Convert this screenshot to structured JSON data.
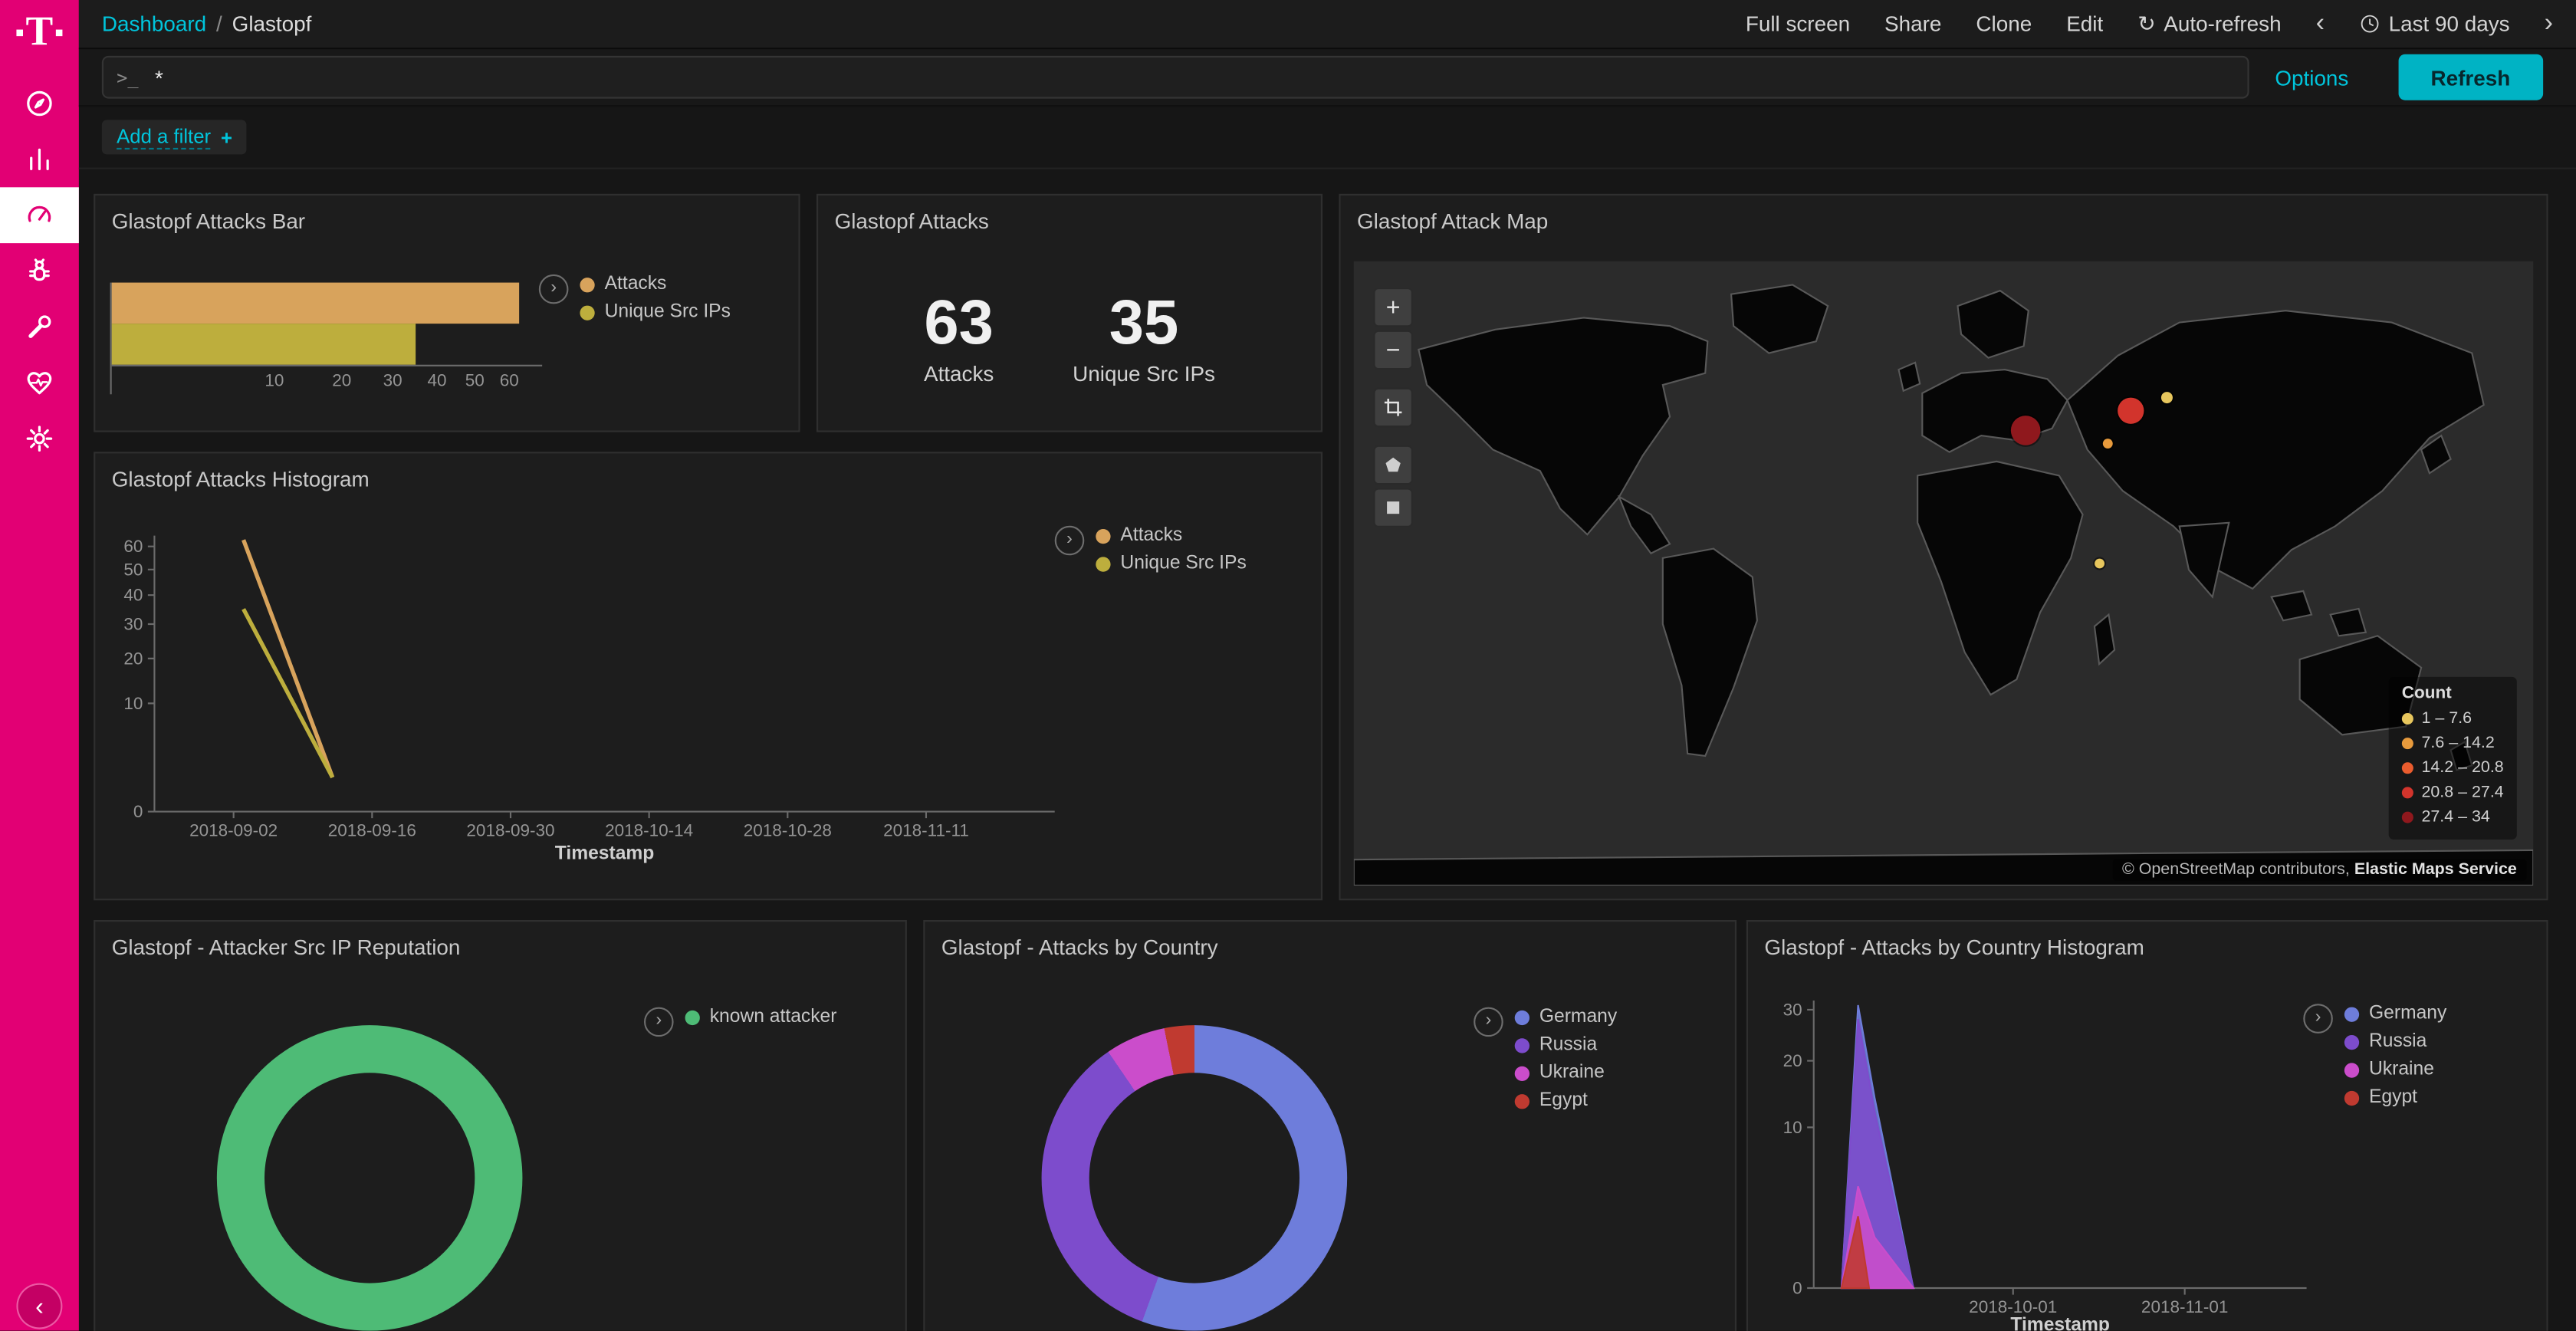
{
  "icons": {
    "chevron_left": "‹",
    "chevron_right": "›",
    "refresh_cw": "↻",
    "plus": "+",
    "minus": "−"
  },
  "brand": {
    "logo_text": "T"
  },
  "sidebar": {
    "items": [
      {
        "name": "discover",
        "icon": "compass-icon"
      },
      {
        "name": "visualize",
        "icon": "bar-chart-icon"
      },
      {
        "name": "dashboard",
        "icon": "gauge-icon",
        "active": true
      },
      {
        "name": "timelion",
        "icon": "bug-icon"
      },
      {
        "name": "dev-tools",
        "icon": "wrench-icon"
      },
      {
        "name": "monitoring",
        "icon": "heartbeat-icon"
      },
      {
        "name": "management",
        "icon": "gear-icon"
      }
    ]
  },
  "topbar": {
    "breadcrumb": {
      "link": "Dashboard",
      "separator": "/",
      "current": "Glastopf"
    },
    "actions": {
      "full_screen": "Full screen",
      "share": "Share",
      "clone": "Clone",
      "edit": "Edit",
      "auto_refresh": "Auto-refresh",
      "time_range": "Last 90 days"
    }
  },
  "querybar": {
    "prompt": ">_",
    "value": "*",
    "options_label": "Options",
    "refresh_label": "Refresh"
  },
  "filterbar": {
    "add_filter_label": "Add a filter"
  },
  "chart_data": [
    {
      "id": "attacks-bar",
      "type": "bar",
      "orientation": "horizontal",
      "title": "Glastopf Attacks Bar",
      "scale": "sqrt",
      "xlim": [
        0,
        65
      ],
      "xticks": [
        10,
        20,
        30,
        40,
        50,
        60
      ],
      "series": [
        {
          "name": "Attacks",
          "value": 63,
          "color": "#d8a35c"
        },
        {
          "name": "Unique Src IPs",
          "value": 35,
          "color": "#bdae3d"
        }
      ]
    },
    {
      "id": "attacks-metric",
      "type": "metric",
      "title": "Glastopf Attacks",
      "metrics": [
        {
          "value": "63",
          "label": "Attacks"
        },
        {
          "value": "35",
          "label": "Unique Src IPs"
        }
      ]
    },
    {
      "id": "attack-map",
      "type": "map",
      "title": "Glastopf Attack Map",
      "legend_title": "Count",
      "legend": [
        {
          "range": "1 – 7.6",
          "color": "#e7c65d"
        },
        {
          "range": "7.6 – 14.2",
          "color": "#e79a3c"
        },
        {
          "range": "14.2 – 20.8",
          "color": "#ea5c2e"
        },
        {
          "range": "20.8 – 27.4",
          "color": "#d2342c"
        },
        {
          "range": "27.4 – 34",
          "color": "#8f181d"
        }
      ],
      "points": [
        {
          "x": 56.9,
          "y": 27.0,
          "r": 9,
          "color": "#8f181d"
        },
        {
          "x": 65.9,
          "y": 23.9,
          "r": 8,
          "color": "#d2342c"
        },
        {
          "x": 69.0,
          "y": 21.8,
          "r": 3.5,
          "color": "#e7c65d"
        },
        {
          "x": 63.9,
          "y": 29.1,
          "r": 3,
          "color": "#e79a3c"
        },
        {
          "x": 63.3,
          "y": 48.3,
          "r": 3,
          "color": "#e7c65d"
        }
      ],
      "attribution_1": "© OpenStreetMap contributors,",
      "attribution_2": "Elastic Maps Service"
    },
    {
      "id": "attacks-histogram",
      "type": "line",
      "title": "Glastopf Attacks Histogram",
      "xlabel": "Timestamp",
      "scale": "sqrt",
      "ylim": [
        0,
        65
      ],
      "yticks": [
        0,
        10,
        20,
        30,
        40,
        50,
        60
      ],
      "xdomain": [
        "2018-08-25",
        "2018-11-24"
      ],
      "xticks": [
        "2018-09-02",
        "2018-09-16",
        "2018-09-30",
        "2018-10-14",
        "2018-10-28",
        "2018-11-11"
      ],
      "series": [
        {
          "name": "Attacks",
          "color": "#d8a35c",
          "points": [
            [
              "2018-09-03",
              63
            ],
            [
              "2018-09-12",
              1
            ]
          ]
        },
        {
          "name": "Unique Src IPs",
          "color": "#bdae3d",
          "points": [
            [
              "2018-09-03",
              35
            ],
            [
              "2018-09-12",
              1
            ]
          ]
        }
      ]
    },
    {
      "id": "src-ip-reputation",
      "type": "pie",
      "title": "Glastopf - Attacker Src IP Reputation",
      "slices": [
        {
          "label": "known attacker",
          "value": 100,
          "color": "#4ebb76"
        }
      ]
    },
    {
      "id": "attacks-by-country",
      "type": "pie",
      "title": "Glastopf - Attacks by Country",
      "slices": [
        {
          "label": "Germany",
          "value": 35,
          "color": "#6e7ddb"
        },
        {
          "label": "Russia",
          "value": 22,
          "color": "#7d4ccc"
        },
        {
          "label": "Ukraine",
          "value": 4,
          "color": "#cb4dcb"
        },
        {
          "label": "Egypt",
          "value": 2,
          "color": "#c03a30"
        }
      ]
    },
    {
      "id": "attacks-by-country-histogram",
      "type": "area",
      "title": "Glastopf - Attacks by Country Histogram",
      "xlabel": "Timestamp",
      "scale": "sqrt",
      "ylim": [
        0,
        32
      ],
      "yticks": [
        0,
        10,
        20,
        30
      ],
      "xdomain": [
        "2018-08-26",
        "2018-11-23"
      ],
      "xticks": [
        "2018-10-01",
        "2018-11-01"
      ],
      "series": [
        {
          "name": "Germany",
          "color": "#6e7ddb",
          "points": [
            [
              "2018-08-31",
              0
            ],
            [
              "2018-09-03",
              31
            ],
            [
              "2018-09-06",
              14
            ],
            [
              "2018-09-13",
              0
            ]
          ]
        },
        {
          "name": "Russia",
          "color": "#7d4ccc",
          "points": [
            [
              "2018-08-31",
              0
            ],
            [
              "2018-09-03",
              28
            ],
            [
              "2018-09-06",
              12
            ],
            [
              "2018-09-13",
              0
            ]
          ]
        },
        {
          "name": "Ukraine",
          "color": "#cb4dcb",
          "points": [
            [
              "2018-08-31",
              0
            ],
            [
              "2018-09-03",
              4
            ],
            [
              "2018-09-06",
              1
            ],
            [
              "2018-09-13",
              0
            ]
          ]
        },
        {
          "name": "Egypt",
          "color": "#c03a30",
          "points": [
            [
              "2018-08-31",
              0
            ],
            [
              "2018-09-03",
              2
            ],
            [
              "2018-09-05",
              0
            ]
          ]
        }
      ]
    }
  ]
}
